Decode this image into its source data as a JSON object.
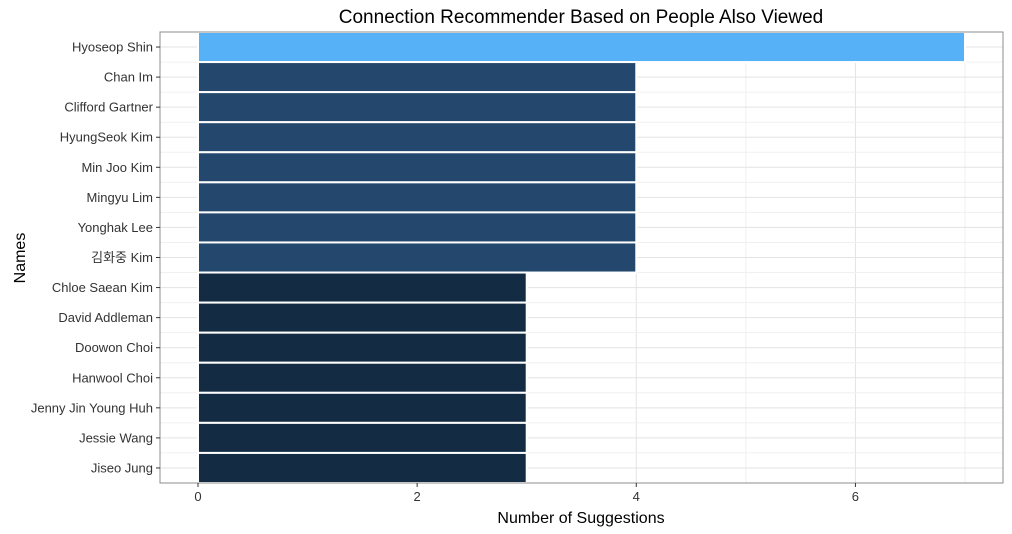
{
  "chart_data": {
    "type": "bar",
    "orientation": "horizontal",
    "title": "Connection Recommender Based on People Also Viewed",
    "xlabel": "Number of Suggestions",
    "ylabel": "Names",
    "xlim": [
      0,
      7.35
    ],
    "x_ticks": [
      0,
      2,
      4,
      6
    ],
    "x_tick_labels": [
      "0",
      "2",
      "4",
      "6"
    ],
    "grid": true,
    "legend": "none",
    "categories": [
      "Hyoseop Shin",
      "Chan Im",
      "Clifford Gartner",
      "HyungSeok Kim",
      "Min Joo Kim",
      "Mingyu Lim",
      "Yonghak Lee",
      "김화중 Kim",
      "Chloe Saean Kim",
      "David Addleman",
      "Doowon Choi",
      "Hanwool Choi",
      "Jenny Jin Young Huh",
      "Jessie Wang",
      "Jiseo Jung"
    ],
    "values": [
      7,
      4,
      4,
      4,
      4,
      4,
      4,
      4,
      3,
      3,
      3,
      3,
      3,
      3,
      3
    ],
    "colors": [
      "#56b1f7",
      "#24486d",
      "#24486d",
      "#24486d",
      "#24486d",
      "#24486d",
      "#24486d",
      "#24486d",
      "#132b43",
      "#132b43",
      "#132b43",
      "#132b43",
      "#132b43",
      "#132b43",
      "#132b43"
    ]
  }
}
